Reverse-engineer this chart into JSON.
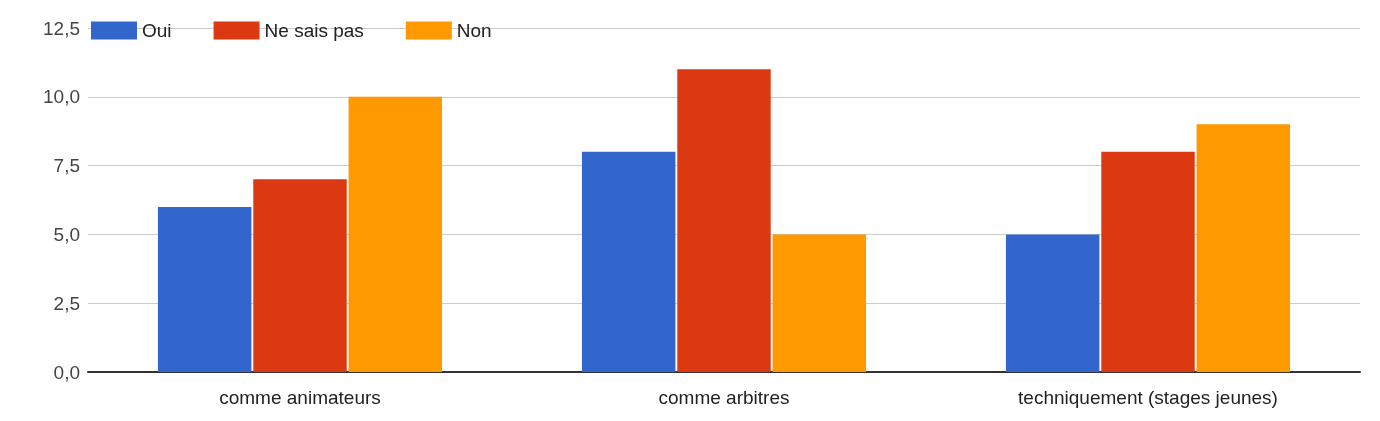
{
  "chart_data": {
    "type": "bar",
    "categories": [
      "comme animateurs",
      "comme arbitres",
      "techniquement (stages jeunes)"
    ],
    "series": [
      {
        "name": "Oui",
        "color": "#3366cc",
        "values": [
          6,
          8,
          5
        ]
      },
      {
        "name": "Ne sais pas",
        "color": "#dc3912",
        "values": [
          7,
          11,
          8
        ]
      },
      {
        "name": "Non",
        "color": "#ff9900",
        "values": [
          10,
          5,
          9
        ]
      }
    ],
    "ylim": [
      0,
      12.5
    ],
    "yticks": [
      {
        "value": 0,
        "label": "0,0"
      },
      {
        "value": 2.5,
        "label": "2,5"
      },
      {
        "value": 5,
        "label": "5,0"
      },
      {
        "value": 7.5,
        "label": "7,5"
      },
      {
        "value": 10,
        "label": "10,0"
      },
      {
        "value": 12.5,
        "label": "12,5"
      }
    ],
    "grid": "y",
    "legend": "top left"
  }
}
